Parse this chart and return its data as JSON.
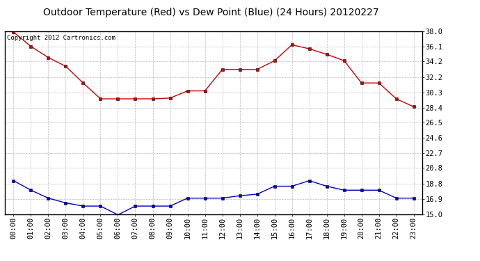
{
  "title": "Outdoor Temperature (Red) vs Dew Point (Blue) (24 Hours) 20120227",
  "copyright_text": "Copyright 2012 Cartronics.com",
  "x_labels": [
    "00:00",
    "01:00",
    "02:00",
    "03:00",
    "04:00",
    "05:00",
    "06:00",
    "07:00",
    "08:00",
    "09:00",
    "10:00",
    "11:00",
    "12:00",
    "13:00",
    "14:00",
    "15:00",
    "16:00",
    "17:00",
    "18:00",
    "19:00",
    "20:00",
    "21:00",
    "22:00",
    "23:00"
  ],
  "temp_values": [
    37.9,
    36.1,
    34.7,
    33.6,
    31.5,
    29.5,
    29.5,
    29.5,
    29.5,
    29.6,
    30.5,
    30.5,
    33.2,
    33.2,
    33.2,
    34.3,
    36.3,
    35.8,
    35.1,
    34.3,
    31.5,
    31.5,
    29.5,
    28.5
  ],
  "dew_values": [
    19.2,
    18.0,
    17.0,
    16.4,
    16.0,
    16.0,
    14.9,
    16.0,
    16.0,
    16.0,
    17.0,
    17.0,
    17.0,
    17.3,
    17.5,
    18.5,
    18.5,
    19.2,
    18.5,
    18.0,
    18.0,
    18.0,
    17.0,
    17.0
  ],
  "temp_color": "#cc0000",
  "dew_color": "#0000cc",
  "bg_color": "#ffffff",
  "plot_bg_color": "#ffffff",
  "grid_color": "#bbbbbb",
  "ylim": [
    15.0,
    38.0
  ],
  "yticks": [
    15.0,
    16.9,
    18.8,
    20.8,
    22.7,
    24.6,
    26.5,
    28.4,
    30.3,
    32.2,
    34.2,
    36.1,
    38.0
  ],
  "title_fontsize": 10,
  "tick_fontsize": 7.5,
  "copyright_fontsize": 6.5
}
